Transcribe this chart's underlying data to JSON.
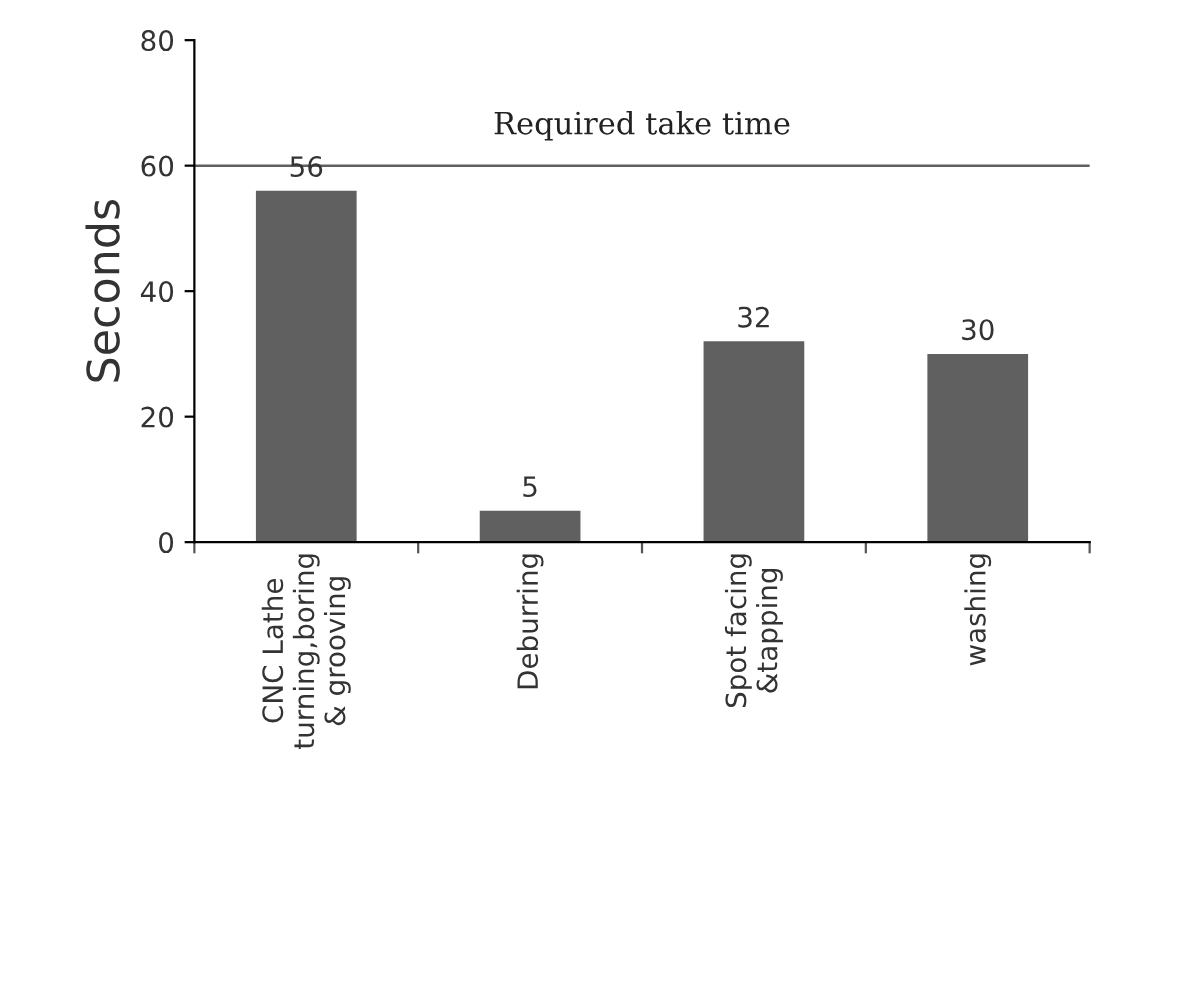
{
  "chart_data": {
    "type": "bar",
    "ylabel": "Seconds",
    "categories": [
      "CNC Lathe\nturning,boring\n& grooving",
      "Deburring",
      "Spot facing\n&tapping",
      "washing"
    ],
    "values": [
      56,
      5,
      32,
      30
    ],
    "color": "#606060",
    "data_labels": true,
    "ylim": [
      0,
      80
    ],
    "yticks": [
      0,
      20,
      40,
      60,
      80
    ],
    "grid": false,
    "legend": false,
    "ref_lines": [
      {
        "axis": "y",
        "value": 60,
        "label": "Required take time",
        "color": "#606060"
      }
    ]
  }
}
